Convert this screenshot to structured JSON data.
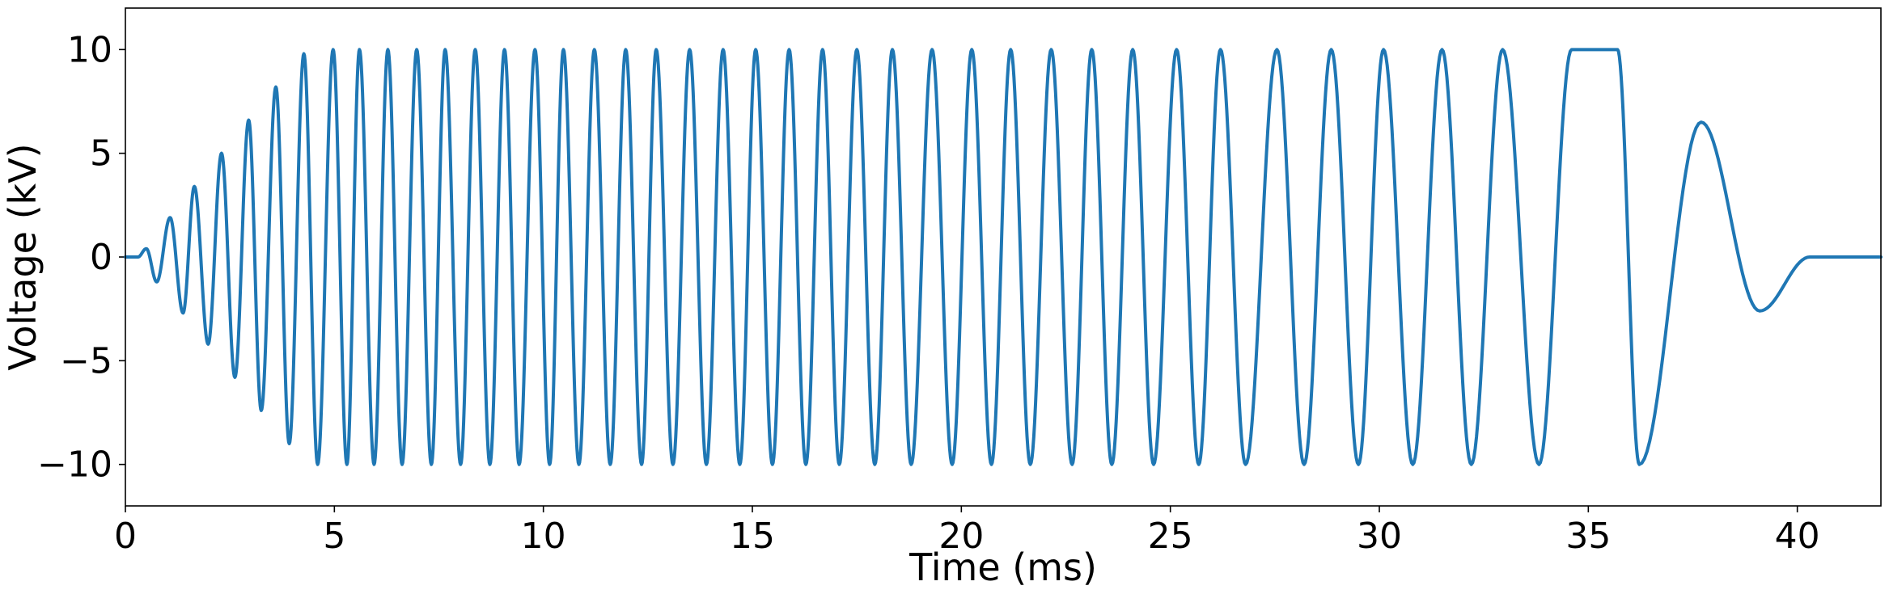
{
  "chart_data": {
    "type": "line",
    "title": "",
    "xlabel": "Time (ms)",
    "ylabel": "Voltage (kV)",
    "xlim": [
      0,
      42
    ],
    "ylim": [
      -12,
      12
    ],
    "xticks": [
      0,
      5,
      10,
      15,
      20,
      25,
      30,
      35,
      40
    ],
    "yticks": [
      -10,
      -5,
      0,
      5,
      10
    ],
    "xtick_labels": [
      "0",
      "5",
      "10",
      "15",
      "20",
      "25",
      "30",
      "35",
      "40"
    ],
    "ytick_labels": [
      "−10",
      "−5",
      "0",
      "5",
      "10"
    ],
    "grid": false,
    "legend": "none",
    "line_color": "#1f77b4",
    "signal": {
      "form": "chirp burst with ramp-up and ramp-down envelope",
      "amplitude_kV": 10,
      "start_ms": 0.3,
      "end_ms": 40.3,
      "ramp_up_end_ms": 4.2,
      "ramp_down_start_ms": 36.5,
      "peak_times_ms": [
        0.5,
        1.07,
        1.65,
        2.3,
        2.95,
        3.6,
        4.27,
        4.97,
        5.6,
        6.28,
        6.97,
        7.65,
        8.37,
        9.07,
        9.8,
        10.48,
        11.22,
        11.97,
        12.7,
        13.5,
        14.3,
        15.08,
        15.88,
        16.68,
        17.5,
        18.35,
        19.3,
        20.25,
        21.18,
        22.15,
        23.12,
        24.1,
        25.15,
        26.2,
        27.55,
        28.85,
        30.1,
        31.5,
        32.95,
        34.6,
        35.7,
        37.7
      ],
      "peak_values_kV": [
        0.4,
        1.9,
        3.4,
        5.0,
        6.6,
        8.2,
        9.8,
        10,
        10,
        10,
        10,
        10,
        10,
        10,
        10,
        10,
        10,
        10,
        10,
        10,
        10,
        10,
        10,
        10,
        10,
        10,
        10,
        10,
        10,
        10,
        10,
        10,
        10,
        10,
        10,
        10,
        10,
        10,
        10,
        10,
        10,
        6.5
      ],
      "trough_times_ms": [
        0.75,
        1.38,
        1.98,
        2.62,
        3.25,
        3.92,
        4.6,
        5.3,
        5.95,
        6.62,
        7.32,
        8.02,
        8.72,
        9.42,
        10.15,
        10.85,
        11.6,
        12.35,
        13.1,
        13.9,
        14.7,
        15.48,
        16.28,
        17.08,
        17.93,
        18.8,
        19.78,
        20.72,
        21.65,
        22.65,
        23.6,
        24.6,
        25.68,
        26.8,
        28.2,
        29.5,
        30.8,
        32.2,
        33.82,
        36.22,
        39.1
      ],
      "trough_values_kV": [
        -1.2,
        -2.7,
        -4.2,
        -5.8,
        -7.4,
        -9.0,
        -10,
        -10,
        -10,
        -10,
        -10,
        -10,
        -10,
        -10,
        -10,
        -10,
        -10,
        -10,
        -10,
        -10,
        -10,
        -10,
        -10,
        -10,
        -10,
        -10,
        -10,
        -10,
        -10,
        -10,
        -10,
        -10,
        -10,
        -10,
        -10,
        -10,
        -10,
        -10,
        -10,
        -10,
        -2.6
      ]
    }
  }
}
